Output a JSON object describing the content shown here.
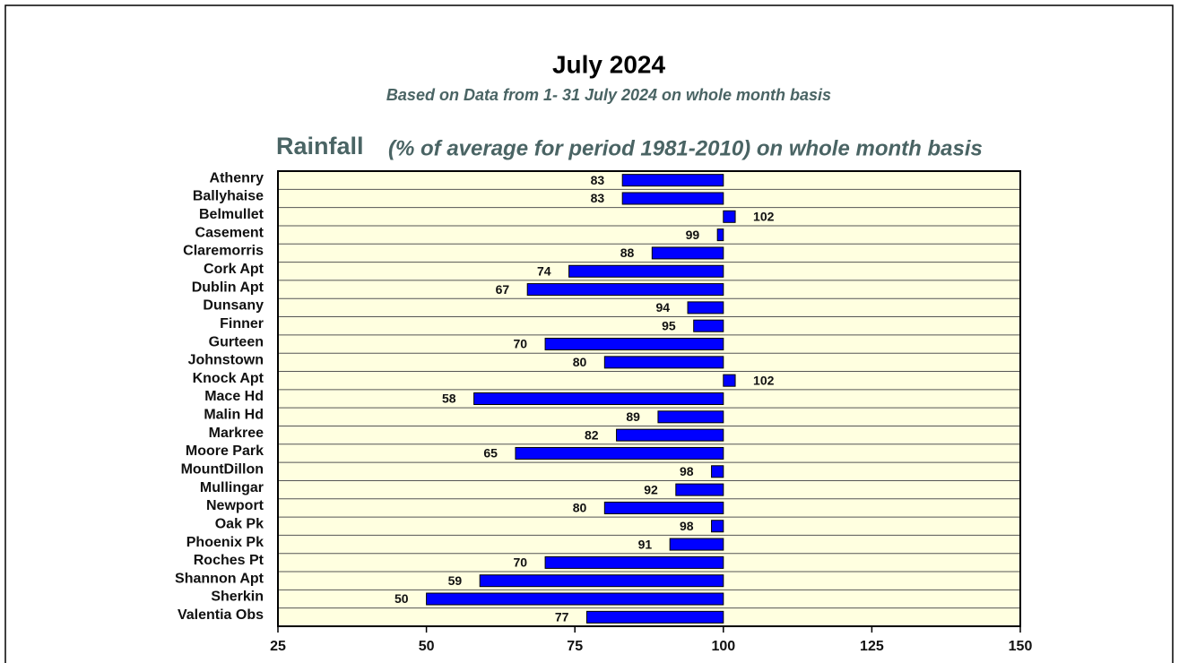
{
  "title": "July 2024",
  "subtitle": "Based on Data from 1- 31 July 2024 on whole month basis",
  "chart_data": {
    "type": "bar",
    "orientation": "horizontal",
    "title": "Rainfall",
    "subtitle": "(% of average for period 1981-2010) on whole month basis",
    "categories": [
      "Athenry",
      "Ballyhaise",
      "Belmullet",
      "Casement",
      "Claremorris",
      "Cork Apt",
      "Dublin Apt",
      "Dunsany",
      "Finner",
      "Gurteen",
      "Johnstown",
      "Knock Apt",
      "Mace Hd",
      "Malin Hd",
      "Markree",
      "Moore Park",
      "MountDillon",
      "Mullingar",
      "Newport",
      "Oak Pk",
      "Phoenix Pk",
      "Roches Pt",
      "Shannon Apt",
      "Sherkin",
      "Valentia Obs"
    ],
    "values": [
      83,
      83,
      102,
      99,
      88,
      74,
      67,
      94,
      95,
      70,
      80,
      102,
      58,
      89,
      82,
      65,
      98,
      92,
      80,
      98,
      91,
      70,
      59,
      50,
      77
    ],
    "base": 100,
    "color": "#0000ff",
    "background": "#ffffe0",
    "xlim": [
      25,
      150
    ],
    "xticks": [
      25,
      50,
      75,
      100,
      125,
      150
    ]
  }
}
